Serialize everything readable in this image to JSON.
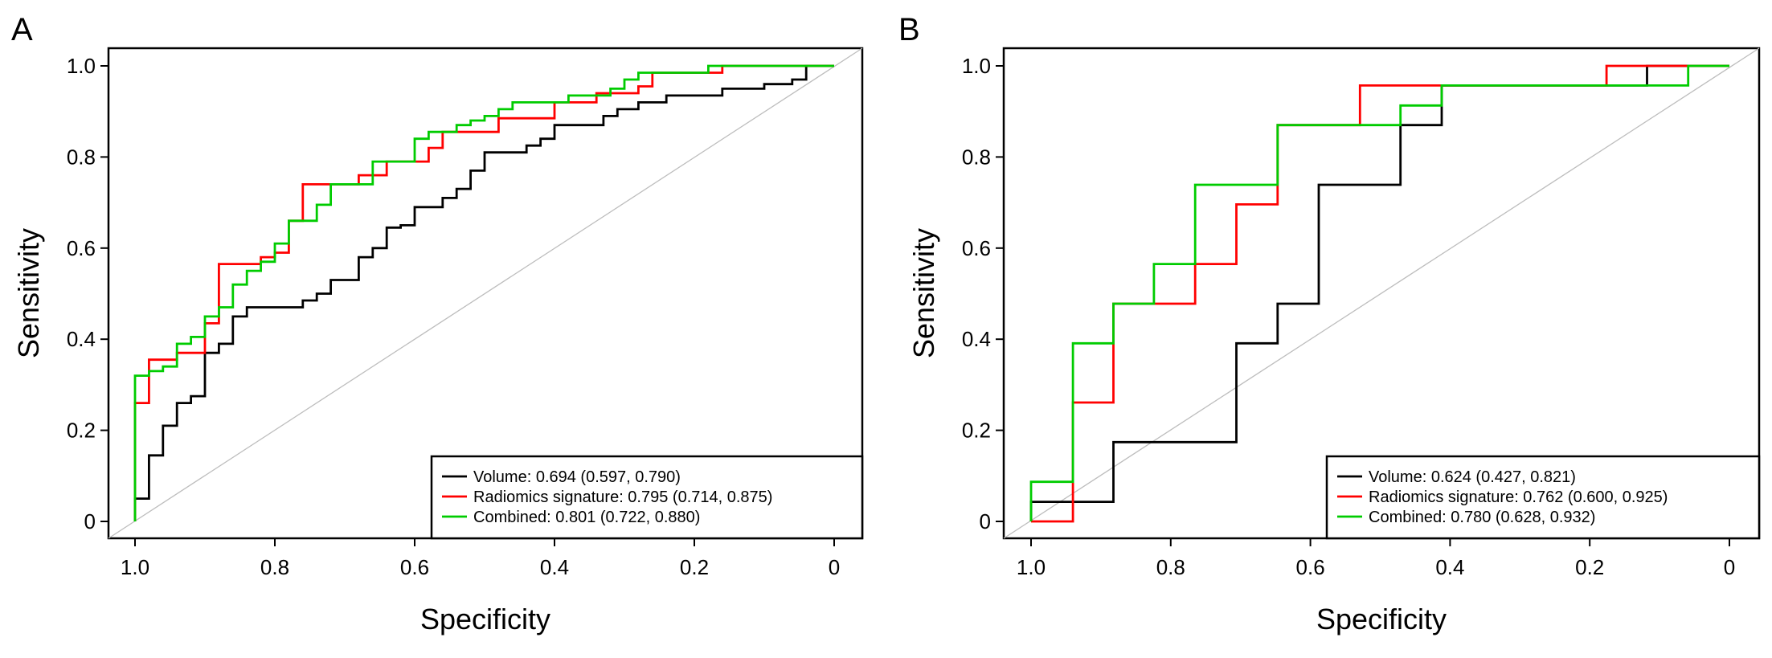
{
  "colors": {
    "volume": "#000000",
    "radiomics": "#ff0000",
    "combined": "#00cc00",
    "diagonal": "#bdbdbd"
  },
  "chart_data": [
    {
      "type": "line",
      "panel": "A",
      "xlabel": "Specificity",
      "ylabel": "Sensitivity",
      "xlim": [
        1.0,
        0.0
      ],
      "ylim": [
        0.0,
        1.0
      ],
      "xticks": [
        "1.0",
        "0.8",
        "0.6",
        "0.4",
        "0.2",
        "0"
      ],
      "yticks": [
        "0",
        "0.2",
        "0.4",
        "0.6",
        "0.8",
        "1.0"
      ],
      "reference_line": true,
      "legend_position": "bottom-right",
      "series": [
        {
          "name": "Volume: 0.694 (0.597, 0.790)",
          "color": "#000000",
          "x": [
            1.0,
            1.0,
            0.98,
            0.98,
            0.96,
            0.96,
            0.94,
            0.94,
            0.92,
            0.92,
            0.9,
            0.9,
            0.88,
            0.88,
            0.86,
            0.86,
            0.84,
            0.84,
            0.76,
            0.76,
            0.74,
            0.74,
            0.72,
            0.72,
            0.68,
            0.68,
            0.66,
            0.66,
            0.64,
            0.64,
            0.62,
            0.62,
            0.6,
            0.6,
            0.56,
            0.56,
            0.54,
            0.54,
            0.52,
            0.52,
            0.5,
            0.5,
            0.44,
            0.44,
            0.42,
            0.42,
            0.4,
            0.4,
            0.33,
            0.33,
            0.31,
            0.31,
            0.28,
            0.28,
            0.24,
            0.24,
            0.16,
            0.16,
            0.1,
            0.1,
            0.06,
            0.06,
            0.04,
            0.04,
            0.0
          ],
          "y": [
            0.0,
            0.05,
            0.05,
            0.145,
            0.145,
            0.21,
            0.21,
            0.26,
            0.26,
            0.275,
            0.275,
            0.37,
            0.37,
            0.39,
            0.39,
            0.45,
            0.45,
            0.47,
            0.47,
            0.485,
            0.485,
            0.5,
            0.5,
            0.53,
            0.53,
            0.58,
            0.58,
            0.6,
            0.6,
            0.645,
            0.645,
            0.65,
            0.65,
            0.69,
            0.69,
            0.71,
            0.71,
            0.73,
            0.73,
            0.77,
            0.77,
            0.81,
            0.81,
            0.825,
            0.825,
            0.84,
            0.84,
            0.87,
            0.87,
            0.89,
            0.89,
            0.905,
            0.905,
            0.92,
            0.92,
            0.935,
            0.935,
            0.95,
            0.95,
            0.96,
            0.96,
            0.97,
            0.97,
            1.0,
            1.0
          ]
        },
        {
          "name": "Radiomics signature: 0.795 (0.714, 0.875)",
          "color": "#ff0000",
          "x": [
            1.0,
            1.0,
            0.98,
            0.98,
            0.94,
            0.94,
            0.9,
            0.9,
            0.88,
            0.88,
            0.82,
            0.82,
            0.8,
            0.8,
            0.78,
            0.78,
            0.76,
            0.76,
            0.68,
            0.68,
            0.64,
            0.64,
            0.58,
            0.58,
            0.56,
            0.56,
            0.48,
            0.48,
            0.4,
            0.4,
            0.34,
            0.34,
            0.28,
            0.28,
            0.26,
            0.26,
            0.16,
            0.16,
            0.0
          ],
          "y": [
            0.0,
            0.26,
            0.26,
            0.355,
            0.355,
            0.37,
            0.37,
            0.435,
            0.435,
            0.565,
            0.565,
            0.58,
            0.58,
            0.59,
            0.59,
            0.66,
            0.66,
            0.74,
            0.74,
            0.76,
            0.76,
            0.79,
            0.79,
            0.82,
            0.82,
            0.855,
            0.855,
            0.885,
            0.885,
            0.92,
            0.92,
            0.94,
            0.94,
            0.955,
            0.955,
            0.985,
            0.985,
            1.0,
            1.0
          ]
        },
        {
          "name": "Combined: 0.801 (0.722, 0.880)",
          "color": "#00cc00",
          "x": [
            1.0,
            1.0,
            0.98,
            0.98,
            0.96,
            0.96,
            0.94,
            0.94,
            0.92,
            0.92,
            0.9,
            0.9,
            0.88,
            0.88,
            0.86,
            0.86,
            0.84,
            0.84,
            0.82,
            0.82,
            0.8,
            0.8,
            0.78,
            0.78,
            0.74,
            0.74,
            0.72,
            0.72,
            0.66,
            0.66,
            0.6,
            0.6,
            0.58,
            0.58,
            0.54,
            0.54,
            0.52,
            0.52,
            0.5,
            0.5,
            0.48,
            0.48,
            0.46,
            0.46,
            0.38,
            0.38,
            0.32,
            0.32,
            0.3,
            0.3,
            0.28,
            0.28,
            0.18,
            0.18,
            0.0
          ],
          "y": [
            0.0,
            0.32,
            0.32,
            0.33,
            0.33,
            0.34,
            0.34,
            0.39,
            0.39,
            0.405,
            0.405,
            0.45,
            0.45,
            0.47,
            0.47,
            0.52,
            0.52,
            0.55,
            0.55,
            0.57,
            0.57,
            0.61,
            0.61,
            0.66,
            0.66,
            0.695,
            0.695,
            0.74,
            0.74,
            0.79,
            0.79,
            0.84,
            0.84,
            0.855,
            0.855,
            0.87,
            0.87,
            0.88,
            0.88,
            0.89,
            0.89,
            0.905,
            0.905,
            0.92,
            0.92,
            0.935,
            0.935,
            0.95,
            0.95,
            0.97,
            0.97,
            0.985,
            0.985,
            1.0,
            1.0
          ]
        }
      ]
    },
    {
      "type": "line",
      "panel": "B",
      "xlabel": "Specificity",
      "ylabel": "Sensitivity",
      "xlim": [
        1.0,
        0.0
      ],
      "ylim": [
        0.0,
        1.0
      ],
      "xticks": [
        "1.0",
        "0.8",
        "0.6",
        "0.4",
        "0.2",
        "0"
      ],
      "yticks": [
        "0",
        "0.2",
        "0.4",
        "0.6",
        "0.8",
        "1.0"
      ],
      "reference_line": true,
      "legend_position": "bottom-right",
      "series": [
        {
          "name": "Volume: 0.624 (0.427, 0.821)",
          "color": "#000000",
          "x": [
            1.0,
            1.0,
            0.94,
            0.94,
            0.882,
            0.882,
            0.706,
            0.706,
            0.647,
            0.647,
            0.588,
            0.588,
            0.471,
            0.471,
            0.412,
            0.412,
            0.118,
            0.118,
            0.0
          ],
          "y": [
            0.0,
            0.043,
            0.043,
            0.043,
            0.043,
            0.174,
            0.174,
            0.391,
            0.391,
            0.478,
            0.478,
            0.739,
            0.739,
            0.87,
            0.87,
            0.957,
            0.957,
            1.0,
            1.0
          ]
        },
        {
          "name": "Radiomics signature: 0.762 (0.600, 0.925)",
          "color": "#ff0000",
          "x": [
            1.0,
            1.0,
            0.94,
            0.94,
            0.882,
            0.882,
            0.765,
            0.765,
            0.706,
            0.706,
            0.647,
            0.647,
            0.529,
            0.529,
            0.176,
            0.176,
            0.0
          ],
          "y": [
            0.0,
            0.0,
            0.0,
            0.261,
            0.261,
            0.478,
            0.478,
            0.565,
            0.565,
            0.696,
            0.696,
            0.87,
            0.87,
            0.957,
            0.957,
            1.0,
            1.0
          ]
        },
        {
          "name": "Combined: 0.780 (0.628, 0.932)",
          "color": "#00cc00",
          "x": [
            1.0,
            1.0,
            0.94,
            0.94,
            0.882,
            0.882,
            0.824,
            0.824,
            0.765,
            0.765,
            0.647,
            0.647,
            0.471,
            0.471,
            0.412,
            0.412,
            0.059,
            0.059,
            0.0
          ],
          "y": [
            0.0,
            0.087,
            0.087,
            0.391,
            0.391,
            0.478,
            0.478,
            0.565,
            0.565,
            0.739,
            0.739,
            0.87,
            0.87,
            0.913,
            0.913,
            0.957,
            0.957,
            1.0,
            1.0
          ]
        }
      ]
    }
  ]
}
